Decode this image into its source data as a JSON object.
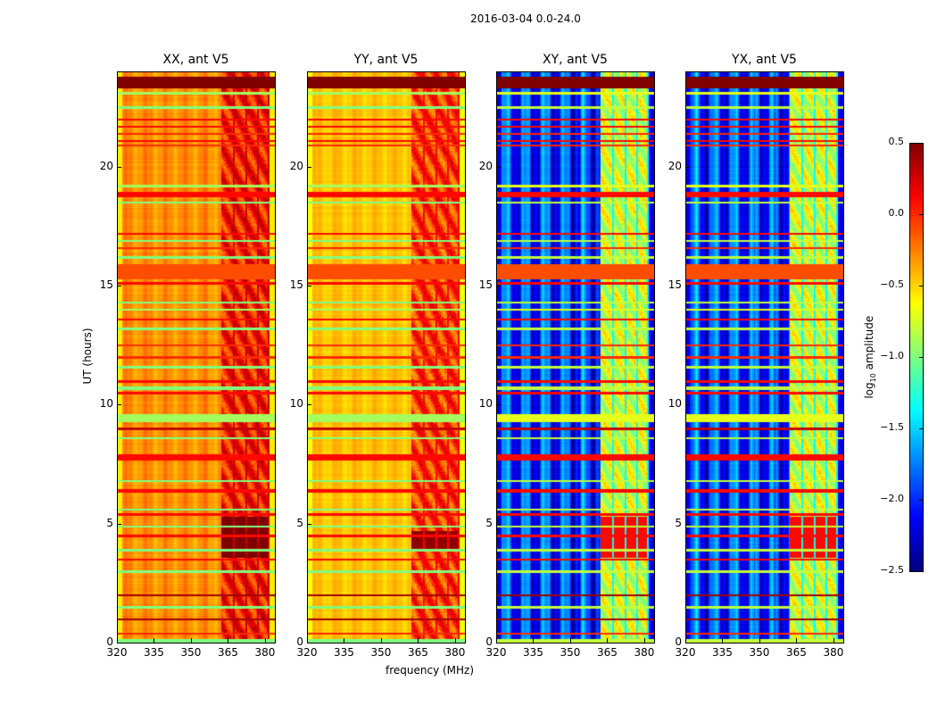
{
  "chart_data": {
    "type": "heatmap",
    "title": "2016-03-04 0.0-24.0",
    "xlabel": "frequency (MHz)",
    "ylabel": "UT (hours)",
    "xlim": [
      320,
      384
    ],
    "ylim": [
      0,
      24
    ],
    "xticks": [
      "320",
      "335",
      "350",
      "365",
      "380"
    ],
    "yticks": [
      "0",
      "5",
      "10",
      "15",
      "20"
    ],
    "colorbar": {
      "label_main": "log",
      "label_sub": "10",
      "label_rest": " amplitude",
      "range": [
        -2.5,
        0.5
      ],
      "ticks": [
        "0.5",
        "0.0",
        "−0.5",
        "−1.0",
        "−1.5",
        "−2.0",
        "−2.5"
      ],
      "tick_values": [
        0.5,
        0.0,
        -0.5,
        -1.0,
        -1.5,
        -2.0,
        -2.5
      ],
      "colormap": "jet"
    },
    "band_channels_mhz": [
      [
        362,
        366.8
      ],
      [
        367.5,
        371.8
      ],
      [
        372.5,
        376.6
      ],
      [
        377.2,
        381
      ]
    ],
    "panels": [
      {
        "title": "XX, ant V5",
        "base": -0.3,
        "edge": -0.55,
        "stripe": 0.08,
        "band": 0.05,
        "band_hi": 0.5,
        "hi_ut": [
          3.6,
          5.3
        ]
      },
      {
        "title": "YY, ant V5",
        "base": -0.45,
        "edge": -0.65,
        "stripe": 0.06,
        "band": -0.05,
        "band_hi": 0.45,
        "hi_ut": [
          3.9,
          4.7
        ]
      },
      {
        "title": "XY, ant V5",
        "base": -1.95,
        "edge": -2.1,
        "stripe": 0.35,
        "band": -0.75,
        "band_hi": 0.1,
        "hi_ut": [
          3.6,
          5.3
        ]
      },
      {
        "title": "YX, ant V5",
        "base": -1.95,
        "edge": -2.1,
        "stripe": 0.35,
        "band": -0.75,
        "band_hi": 0.1,
        "hi_ut": [
          3.6,
          5.3
        ]
      }
    ],
    "flag_lines": [
      {
        "ut": 23.55,
        "dur": 0.45,
        "value": 0.5
      },
      {
        "ut": 23.1,
        "dur": 0.08,
        "value": -0.9
      },
      {
        "ut": 22.5,
        "dur": 0.06,
        "value": -1.0
      },
      {
        "ut": 22.0,
        "dur": 0.05,
        "value": 0.1
      },
      {
        "ut": 21.7,
        "dur": 0.05,
        "value": 0.1
      },
      {
        "ut": 21.4,
        "dur": 0.05,
        "value": 0.0
      },
      {
        "ut": 21.1,
        "dur": 0.05,
        "value": 0.1
      },
      {
        "ut": 20.9,
        "dur": 0.05,
        "value": 0.0
      },
      {
        "ut": 19.2,
        "dur": 0.05,
        "value": -0.9
      },
      {
        "ut": 18.85,
        "dur": 0.2,
        "value": 0.1
      },
      {
        "ut": 18.5,
        "dur": 0.06,
        "value": -1.0
      },
      {
        "ut": 17.2,
        "dur": 0.05,
        "value": 0.1
      },
      {
        "ut": 16.9,
        "dur": 0.06,
        "value": -1.0
      },
      {
        "ut": 16.6,
        "dur": 0.05,
        "value": 0.0
      },
      {
        "ut": 16.2,
        "dur": 0.08,
        "value": -1.0
      },
      {
        "ut": 15.6,
        "dur": 0.6,
        "value": -0.1
      },
      {
        "ut": 15.1,
        "dur": 0.08,
        "value": 0.1
      },
      {
        "ut": 14.3,
        "dur": 0.06,
        "value": -1.0
      },
      {
        "ut": 14.0,
        "dur": 0.05,
        "value": -0.9
      },
      {
        "ut": 13.6,
        "dur": 0.05,
        "value": 0.1
      },
      {
        "ut": 13.2,
        "dur": 0.05,
        "value": -1.0
      },
      {
        "ut": 12.5,
        "dur": 0.05,
        "value": 0.0
      },
      {
        "ut": 12.0,
        "dur": 0.05,
        "value": 0.0
      },
      {
        "ut": 11.6,
        "dur": 0.08,
        "value": -1.0
      },
      {
        "ut": 11.0,
        "dur": 0.06,
        "value": 0.1
      },
      {
        "ut": 10.7,
        "dur": 0.1,
        "value": -1.0
      },
      {
        "ut": 10.5,
        "dur": 0.06,
        "value": 0.1
      },
      {
        "ut": 9.45,
        "dur": 0.3,
        "value": -0.9
      },
      {
        "ut": 9.0,
        "dur": 0.06,
        "value": 0.3
      },
      {
        "ut": 8.6,
        "dur": 0.06,
        "value": -1.0
      },
      {
        "ut": 7.8,
        "dur": 0.25,
        "value": 0.1
      },
      {
        "ut": 6.8,
        "dur": 0.05,
        "value": -1.0
      },
      {
        "ut": 6.4,
        "dur": 0.12,
        "value": 0.1
      },
      {
        "ut": 5.6,
        "dur": 0.05,
        "value": -1.0
      },
      {
        "ut": 5.4,
        "dur": 0.05,
        "value": 0.1
      },
      {
        "ut": 4.9,
        "dur": 0.06,
        "value": -1.0
      },
      {
        "ut": 4.5,
        "dur": 0.05,
        "value": 0.1
      },
      {
        "ut": 3.9,
        "dur": 0.05,
        "value": -1.0
      },
      {
        "ut": 3.5,
        "dur": 0.05,
        "value": 0.1
      },
      {
        "ut": 3.0,
        "dur": 0.05,
        "value": -1.0
      },
      {
        "ut": 2.0,
        "dur": 0.05,
        "value": 0.4
      },
      {
        "ut": 1.5,
        "dur": 0.1,
        "value": -1.0
      },
      {
        "ut": 1.0,
        "dur": 0.05,
        "value": 0.4
      },
      {
        "ut": 0.4,
        "dur": 0.06,
        "value": 0.0
      },
      {
        "ut": 0.1,
        "dur": 0.12,
        "value": -1.0
      }
    ]
  }
}
